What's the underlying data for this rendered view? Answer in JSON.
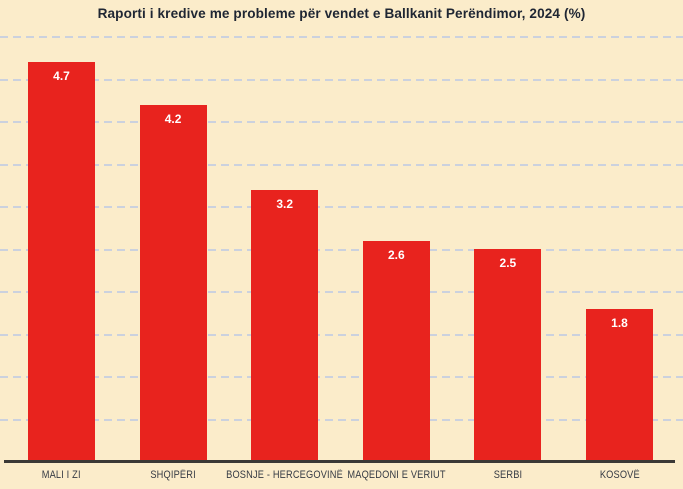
{
  "title": "Raporti i kredive me probleme për vendet e Ballkanit Perëndimor, 2024 (%)",
  "chart_data": {
    "type": "bar",
    "title": "Raporti i kredive me probleme për vendet e Ballkanit Perëndimor, 2024 (%)",
    "categories": [
      "MALI I ZI",
      "SHQIPËRI",
      "BOSNJE - HERCEGOVINË",
      "MAQEDONI E VERIUT",
      "SERBI",
      "KOSOVË"
    ],
    "values": [
      4.7,
      4.2,
      3.2,
      2.6,
      2.5,
      1.8
    ],
    "value_labels": [
      "4.7",
      "4.2",
      "3.2",
      "2.6",
      "2.5",
      "1.8"
    ],
    "xlabel": "",
    "ylabel": "",
    "ylim": [
      0,
      5.0
    ],
    "gridline_step": 0.5,
    "grid": "dashed-horizontal",
    "legend": "none",
    "colors": {
      "background": "#FBECCA",
      "bar": "#E8231E",
      "value_label": "#FFFFFF",
      "gridline": "#CBD1DE",
      "axis_line": "#3B3936",
      "category_label": "#363B44",
      "title": "#1F2633"
    }
  }
}
